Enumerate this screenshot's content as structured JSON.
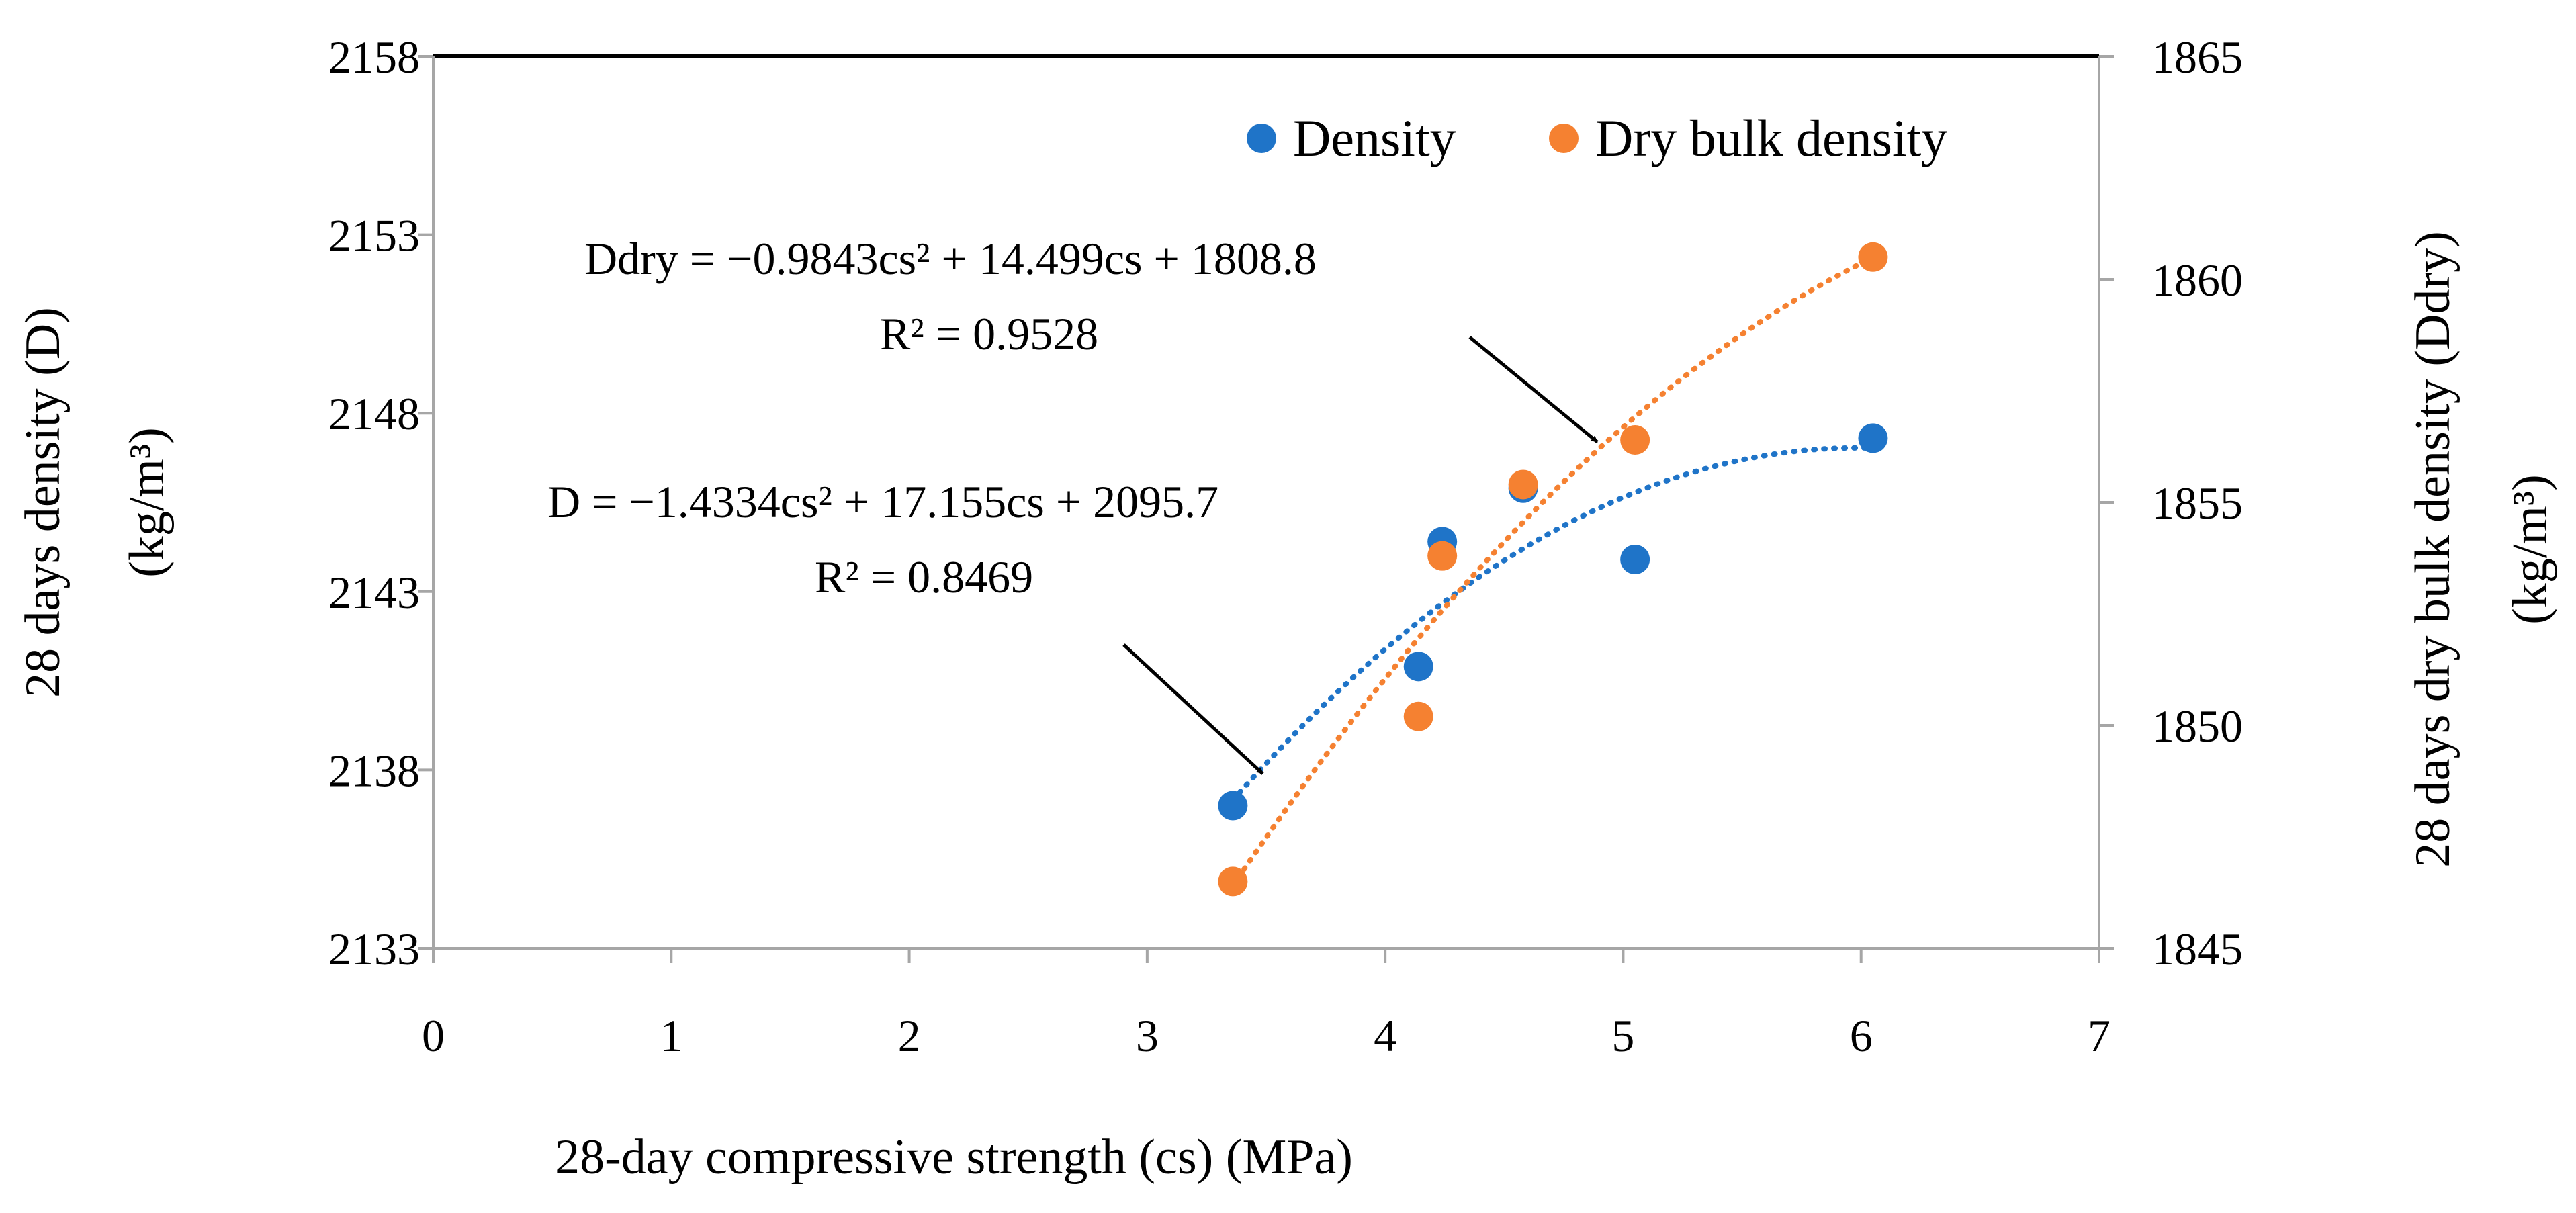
{
  "chart_data": {
    "type": "scatter",
    "xlabel": "28-day compressive strength (cs) (MPa)",
    "ylabel": "28 days density (D)",
    "ylabel_unit": "(kg/m³)",
    "y2label": "28 days dry bulk density (Ddry)",
    "y2label_unit": "(kg/m³)",
    "xlim": [
      0,
      7
    ],
    "ylim": [
      2133,
      2158
    ],
    "y2lim": [
      1845,
      1865
    ],
    "x_ticks": [
      "0",
      "1",
      "2",
      "3",
      "4",
      "5",
      "6",
      "7"
    ],
    "y_ticks": [
      "2133",
      "2138",
      "2143",
      "2148",
      "2153",
      "2158"
    ],
    "y2_ticks": [
      "1845",
      "1850",
      "1855",
      "1860",
      "1865"
    ],
    "grid": false,
    "legend_position": "top-right",
    "series": [
      {
        "name": "Density",
        "axis": "left",
        "color": "#1f74c8",
        "points": [
          {
            "x": 3.36,
            "y": 2137.0
          },
          {
            "x": 4.14,
            "y": 2140.9
          },
          {
            "x": 4.24,
            "y": 2144.4
          },
          {
            "x": 4.58,
            "y": 2145.9
          },
          {
            "x": 5.05,
            "y": 2143.9
          },
          {
            "x": 6.05,
            "y": 2147.3
          }
        ],
        "trendline": {
          "a": -1.4334,
          "b": 17.155,
          "c": 2095.7,
          "x_range": [
            3.36,
            6.05
          ],
          "equation_label": "D = −1.4334cs² + 17.155cs + 2095.7",
          "r2_label": "R² = 0.8469"
        }
      },
      {
        "name": "Dry bulk density",
        "axis": "right",
        "color": "#f58131",
        "points": [
          {
            "x": 3.36,
            "y": 1846.5
          },
          {
            "x": 4.14,
            "y": 1850.2
          },
          {
            "x": 4.24,
            "y": 1853.8
          },
          {
            "x": 4.58,
            "y": 1855.4
          },
          {
            "x": 5.05,
            "y": 1856.4
          },
          {
            "x": 6.05,
            "y": 1860.5
          }
        ],
        "trendline": {
          "a": -0.9843,
          "b": 14.499,
          "c": 1808.8,
          "x_range": [
            3.36,
            6.05
          ],
          "equation_label": "Ddry = −0.9843cs² + 14.499cs + 1808.8",
          "r2_label": "R² = 0.9528"
        }
      }
    ]
  }
}
